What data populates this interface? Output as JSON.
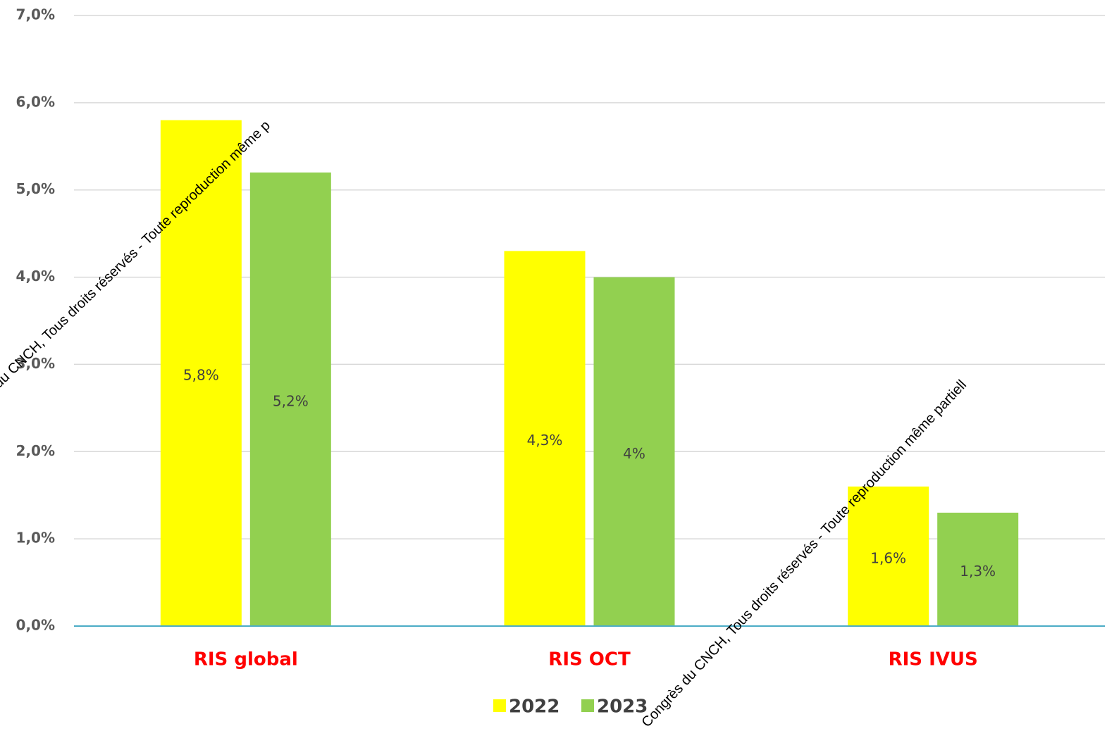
{
  "chart_data": {
    "type": "bar",
    "categories": [
      "RIS global",
      "RIS OCT",
      "RIS IVUS"
    ],
    "series": [
      {
        "name": "2022",
        "color": "#ffff00",
        "values": [
          5.8,
          4.3,
          1.6
        ],
        "value_labels": [
          "5,8%",
          "4,3%",
          "1,6%"
        ]
      },
      {
        "name": "2023",
        "color": "#92d050",
        "values": [
          5.2,
          4,
          1.3
        ],
        "value_labels": [
          "5,2%",
          "4%",
          "1,3%"
        ]
      }
    ],
    "ylim": [
      0,
      7
    ],
    "yticks": [
      {
        "value": 0,
        "label": "0,0%"
      },
      {
        "value": 1,
        "label": "1,0%"
      },
      {
        "value": 2,
        "label": "2,0%"
      },
      {
        "value": 3,
        "label": "3,0%"
      },
      {
        "value": 4,
        "label": "4,0%"
      },
      {
        "value": 5,
        "label": "5,0%"
      },
      {
        "value": 6,
        "label": "6,0%"
      },
      {
        "value": 7,
        "label": "7,0%"
      }
    ],
    "grid": true,
    "legend": "bottom",
    "annotations": [
      "du CNCH, Tous droits réservés - Toute reproduction même p",
      "Congrès du CNCH, Tous droits réservés - Toute reproduction même partiell"
    ]
  }
}
